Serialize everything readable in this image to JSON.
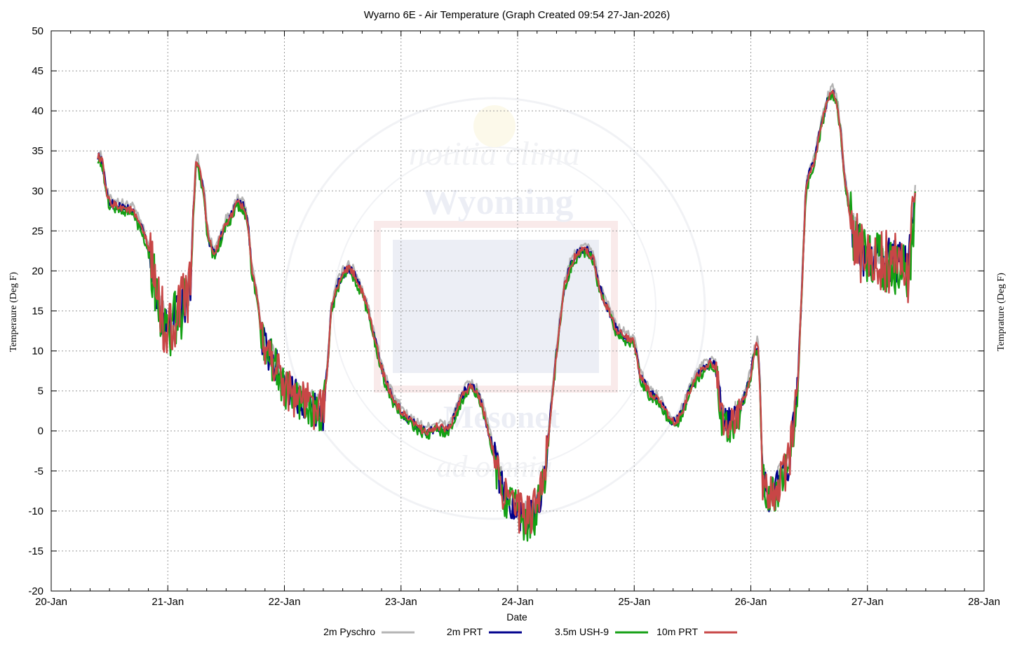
{
  "chart_data": {
    "type": "line",
    "title": "Wyarno 6E - Air Temperature (Graph Created 09:54 27-Jan-2026)",
    "xlabel": "Date",
    "ylabel_left": "Temperaure (Deg F)",
    "ylabel_right": "Temprature (Deg F)",
    "ylim": [
      -20,
      50
    ],
    "yticks": [
      -20,
      -15,
      -10,
      -5,
      0,
      5,
      10,
      15,
      20,
      25,
      30,
      35,
      40,
      45,
      50
    ],
    "xlim": [
      0,
      8
    ],
    "xticks": [
      {
        "v": 0,
        "label": "20-Jan"
      },
      {
        "v": 1,
        "label": "21-Jan"
      },
      {
        "v": 2,
        "label": "22-Jan"
      },
      {
        "v": 3,
        "label": "23-Jan"
      },
      {
        "v": 4,
        "label": "24-Jan"
      },
      {
        "v": 5,
        "label": "25-Jan"
      },
      {
        "v": 6,
        "label": "26-Jan"
      },
      {
        "v": 7,
        "label": "27-Jan"
      },
      {
        "v": 8,
        "label": "28-Jan"
      }
    ],
    "grid": true,
    "legend_position": "bottom",
    "x_unit_note": "x values are days after 20-Jan 00:00",
    "base": [
      [
        0.4,
        34.5
      ],
      [
        0.44,
        33.5
      ],
      [
        0.47,
        30
      ],
      [
        0.5,
        28.5
      ],
      [
        0.6,
        28
      ],
      [
        0.7,
        27.5
      ],
      [
        0.75,
        26
      ],
      [
        0.8,
        24.5
      ],
      [
        0.85,
        22
      ],
      [
        0.88,
        19.5
      ],
      [
        0.92,
        16
      ],
      [
        1.0,
        12
      ],
      [
        1.05,
        14
      ],
      [
        1.1,
        15
      ],
      [
        1.15,
        16
      ],
      [
        1.18,
        17
      ],
      [
        1.2,
        20
      ],
      [
        1.22,
        28
      ],
      [
        1.24,
        33
      ],
      [
        1.25,
        34
      ],
      [
        1.28,
        32
      ],
      [
        1.31,
        30
      ],
      [
        1.33,
        26
      ],
      [
        1.35,
        24
      ],
      [
        1.4,
        22
      ],
      [
        1.45,
        24
      ],
      [
        1.5,
        26
      ],
      [
        1.55,
        27
      ],
      [
        1.6,
        28.5
      ],
      [
        1.65,
        28
      ],
      [
        1.68,
        26.5
      ],
      [
        1.7,
        24
      ],
      [
        1.72,
        20
      ],
      [
        1.75,
        18
      ],
      [
        1.78,
        15
      ],
      [
        1.8,
        12
      ],
      [
        1.85,
        10
      ],
      [
        1.9,
        9
      ],
      [
        1.95,
        7.5
      ],
      [
        2.0,
        6
      ],
      [
        2.05,
        5
      ],
      [
        2.1,
        4.5
      ],
      [
        2.15,
        4
      ],
      [
        2.2,
        3.5
      ],
      [
        2.25,
        3
      ],
      [
        2.3,
        2.5
      ],
      [
        2.33,
        2
      ],
      [
        2.35,
        5
      ],
      [
        2.38,
        10
      ],
      [
        2.4,
        15
      ],
      [
        2.45,
        18
      ],
      [
        2.5,
        19.5
      ],
      [
        2.55,
        20.5
      ],
      [
        2.6,
        19.5
      ],
      [
        2.65,
        18
      ],
      [
        2.7,
        16
      ],
      [
        2.75,
        13
      ],
      [
        2.8,
        10
      ],
      [
        2.85,
        7
      ],
      [
        2.9,
        5
      ],
      [
        2.95,
        3.5
      ],
      [
        3.0,
        2.5
      ],
      [
        3.05,
        1.5
      ],
      [
        3.1,
        1
      ],
      [
        3.15,
        0.5
      ],
      [
        3.2,
        0
      ],
      [
        3.25,
        0
      ],
      [
        3.3,
        0.5
      ],
      [
        3.35,
        0.5
      ],
      [
        3.4,
        0
      ],
      [
        3.45,
        1.5
      ],
      [
        3.5,
        3.5
      ],
      [
        3.55,
        5
      ],
      [
        3.6,
        5.5
      ],
      [
        3.65,
        5
      ],
      [
        3.7,
        3
      ],
      [
        3.75,
        0
      ],
      [
        3.8,
        -3
      ],
      [
        3.85,
        -6
      ],
      [
        3.9,
        -8
      ],
      [
        4.0,
        -10
      ],
      [
        4.05,
        -11
      ],
      [
        4.1,
        -10.5
      ],
      [
        4.15,
        -10
      ],
      [
        4.2,
        -8
      ],
      [
        4.25,
        -3
      ],
      [
        4.3,
        5
      ],
      [
        4.35,
        12
      ],
      [
        4.4,
        18
      ],
      [
        4.45,
        20.5
      ],
      [
        4.5,
        22
      ],
      [
        4.55,
        22.5
      ],
      [
        4.6,
        22.5
      ],
      [
        4.65,
        21.5
      ],
      [
        4.7,
        18
      ],
      [
        4.75,
        16
      ],
      [
        4.8,
        14.5
      ],
      [
        4.85,
        12.5
      ],
      [
        4.9,
        12
      ],
      [
        5.0,
        11
      ],
      [
        5.05,
        7
      ],
      [
        5.1,
        5.5
      ],
      [
        5.15,
        4.5
      ],
      [
        5.2,
        4
      ],
      [
        5.25,
        3
      ],
      [
        5.3,
        1.5
      ],
      [
        5.35,
        1
      ],
      [
        5.4,
        2
      ],
      [
        5.45,
        4
      ],
      [
        5.5,
        6
      ],
      [
        5.55,
        7
      ],
      [
        5.6,
        8
      ],
      [
        5.65,
        8.5
      ],
      [
        5.7,
        8
      ],
      [
        5.72,
        6
      ],
      [
        5.75,
        2
      ],
      [
        5.8,
        1
      ],
      [
        5.85,
        1.5
      ],
      [
        5.9,
        2.5
      ],
      [
        5.95,
        4.5
      ],
      [
        6.0,
        7
      ],
      [
        6.03,
        10
      ],
      [
        6.06,
        11
      ],
      [
        6.08,
        5
      ],
      [
        6.1,
        -6
      ],
      [
        6.15,
        -8
      ],
      [
        6.2,
        -7.5
      ],
      [
        6.25,
        -6
      ],
      [
        6.3,
        -5
      ],
      [
        6.33,
        -4
      ],
      [
        6.35,
        -1
      ],
      [
        6.4,
        5
      ],
      [
        6.42,
        12
      ],
      [
        6.45,
        22
      ],
      [
        6.47,
        30
      ],
      [
        6.5,
        32
      ],
      [
        6.55,
        34
      ],
      [
        6.6,
        38
      ],
      [
        6.65,
        41
      ],
      [
        6.7,
        42.5
      ],
      [
        6.72,
        42
      ],
      [
        6.75,
        40
      ],
      [
        6.78,
        36
      ],
      [
        6.8,
        32
      ],
      [
        6.85,
        27
      ],
      [
        6.9,
        24
      ],
      [
        6.95,
        22
      ],
      [
        7.0,
        22
      ],
      [
        7.05,
        21.5
      ],
      [
        7.1,
        22
      ],
      [
        7.15,
        21
      ],
      [
        7.2,
        21.5
      ],
      [
        7.25,
        21
      ],
      [
        7.3,
        20.5
      ],
      [
        7.35,
        20
      ],
      [
        7.38,
        24
      ],
      [
        7.4,
        28
      ],
      [
        7.41,
        30
      ]
    ],
    "series": [
      {
        "name": "2m Pyschro",
        "color": "#b4b4b4",
        "offset": 0.6,
        "noise": 0.5,
        "spread": 0.5
      },
      {
        "name": "2m PRT",
        "color": "#00008c",
        "offset": 0.0,
        "noise": 0.6,
        "spread": 0.8
      },
      {
        "name": "3.5m USH-9",
        "color": "#14a014",
        "offset": -0.4,
        "noise": 0.7,
        "spread": 1.0
      },
      {
        "name": "10m PRT",
        "color": "#c84646",
        "offset": 0.0,
        "noise": 0.5,
        "spread": 1.2
      }
    ]
  },
  "watermark": {
    "arc_top": "notitia   clima",
    "center": "Wyoming",
    "lower": "Mesonet",
    "arc_bottom": "ad   omnia"
  }
}
